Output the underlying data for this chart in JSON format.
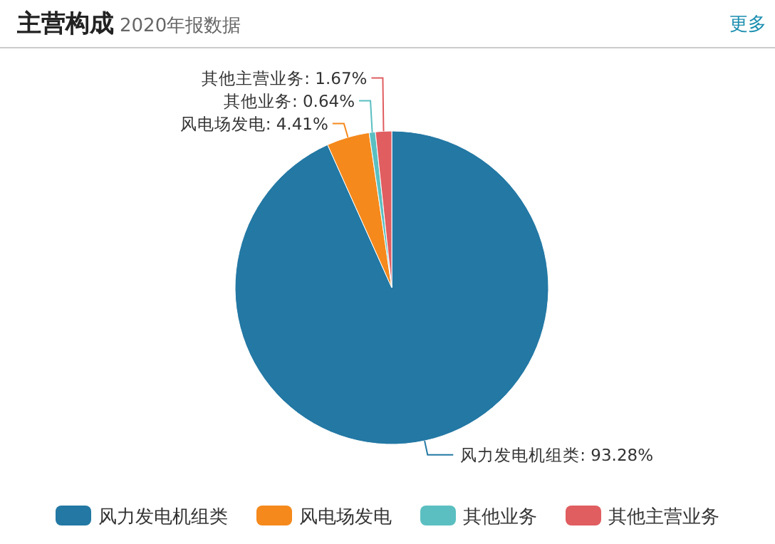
{
  "chart_data": {
    "type": "pie",
    "title": "主营构成",
    "subtitle": "2020年报数据",
    "annotations": [
      "更多"
    ],
    "categories": [
      "风力发电机组类",
      "风电场发电",
      "其他业务",
      "其他主营业务"
    ],
    "values": [
      93.28,
      4.41,
      0.64,
      1.67
    ],
    "value_labels": [
      "风力发电机组类: 93.28%",
      "风电场发电: 4.41%",
      "其他业务: 0.64%",
      "其他主营业务: 1.67%"
    ],
    "colors": [
      "#2378a4",
      "#f5891c",
      "#5bbfc1",
      "#e05d60"
    ],
    "legend": "bottom"
  }
}
